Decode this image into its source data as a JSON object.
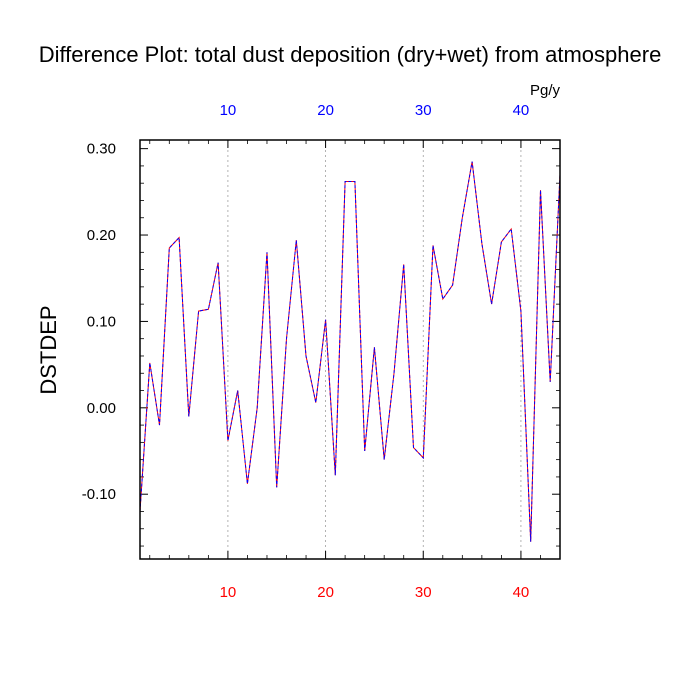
{
  "chart_data": {
    "type": "line",
    "title": "Difference Plot: total dust deposition (dry+wet) from atmosphere",
    "ylabel": "DSTDEP",
    "units": "Pg/y",
    "xlim": [
      1,
      44
    ],
    "ylim": [
      -0.175,
      0.31
    ],
    "yticks": [
      -0.1,
      0.0,
      0.1,
      0.2,
      0.3
    ],
    "ytick_labels": [
      "-0.10",
      "0.00",
      "0.10",
      "0.20",
      "0.30"
    ],
    "xticks": [
      10,
      20,
      30,
      40
    ],
    "xtick_labels": [
      "10",
      "20",
      "30",
      "40"
    ],
    "grid": "vertical dotted at x ticks",
    "colors": {
      "line_red": "#ff0000",
      "line_blue": "#0000ff",
      "bottom_tick_labels": "#ff0000",
      "top_tick_labels": "#0000ff"
    },
    "series": [
      {
        "x": [
          1,
          2,
          3,
          4,
          5,
          6,
          7,
          8,
          9,
          10,
          11,
          12,
          13,
          14,
          15,
          16,
          17,
          18,
          19,
          20,
          21,
          22,
          23,
          24,
          25,
          26,
          27,
          28,
          29,
          30,
          31,
          32,
          33,
          34,
          35,
          36,
          37,
          38,
          39,
          40,
          41,
          42,
          43,
          44
        ],
        "values": [
          -0.12,
          0.052,
          -0.02,
          0.185,
          0.197,
          -0.01,
          0.112,
          0.114,
          0.168,
          -0.038,
          0.02,
          -0.088,
          0.0,
          0.18,
          -0.092,
          0.08,
          0.194,
          0.06,
          0.006,
          0.102,
          -0.078,
          0.262,
          0.262,
          -0.05,
          0.07,
          -0.06,
          0.04,
          0.166,
          -0.046,
          -0.058,
          0.188,
          0.126,
          0.142,
          0.22,
          0.285,
          0.19,
          0.12,
          0.192,
          0.207,
          0.112,
          -0.155,
          0.252,
          0.03,
          0.27
        ]
      }
    ]
  }
}
